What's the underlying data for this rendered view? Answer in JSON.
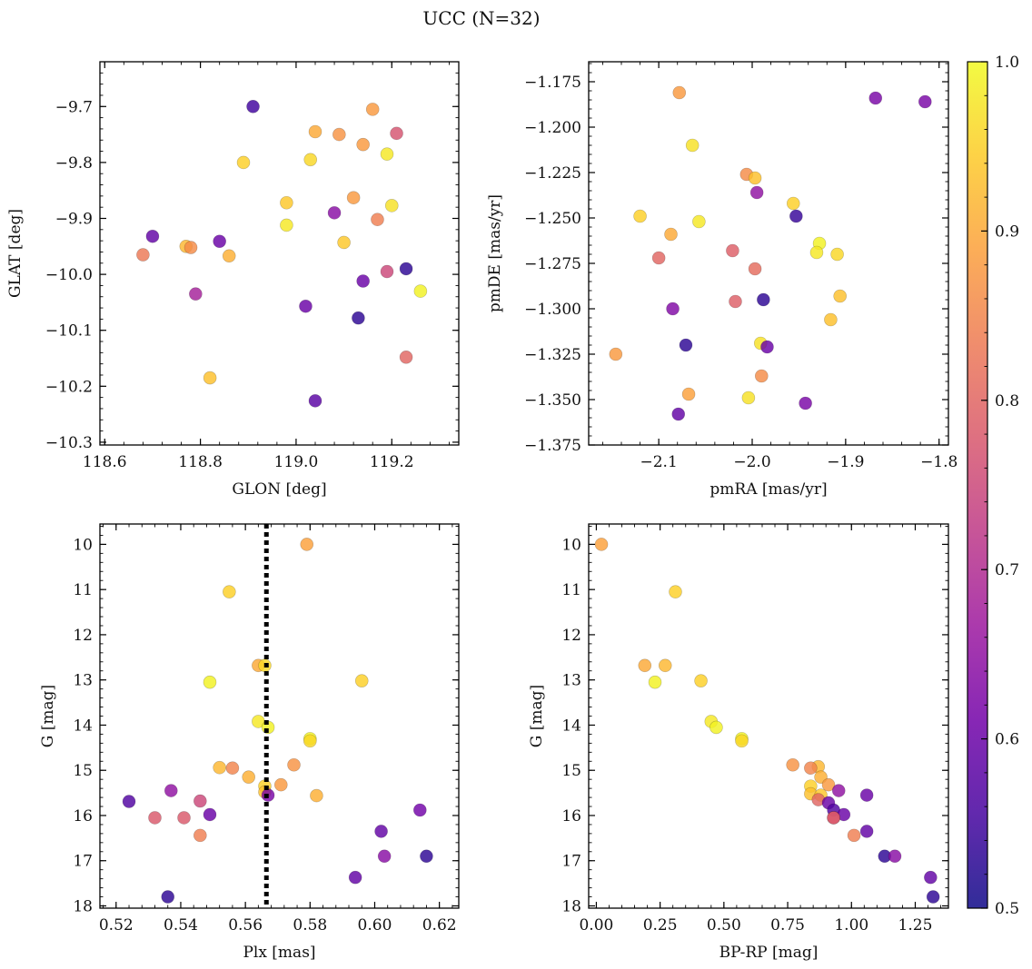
{
  "figure": {
    "title": "UCC (N=32)"
  },
  "colormap": {
    "name": "plasma",
    "range": [
      0.5,
      1.0
    ],
    "stops": [
      "#0d0887",
      "#46039f",
      "#7201a8",
      "#9c179e",
      "#bd3786",
      "#d8576b",
      "#ed7953",
      "#fb9f3a",
      "#fdca26",
      "#f0f921"
    ],
    "ticks": [
      0.5,
      0.6,
      0.7,
      0.8,
      0.9,
      1.0
    ],
    "tick_labels": [
      "0.5",
      "0.6",
      "0.7",
      "0.8",
      "0.9",
      "1.0"
    ]
  },
  "chart_data": [
    {
      "type": "scatter",
      "id": "radec",
      "xlabel": "GLON [deg]",
      "ylabel": "GLAT [deg]",
      "xlim": [
        118.59,
        119.34
      ],
      "ylim": [
        -10.305,
        -9.62
      ],
      "xticks": [
        118.6,
        118.8,
        119.0,
        119.2
      ],
      "xtick_labels": [
        "118.6",
        "118.8",
        "119.0",
        "119.2"
      ],
      "yticks": [
        -10.3,
        -10.2,
        -10.1,
        -10.0,
        -9.9,
        -9.8,
        -9.7
      ],
      "ytick_labels": [
        "−10.3",
        "−10.2",
        "−10.1",
        "−10.0",
        "−9.9",
        "−9.8",
        "−9.7"
      ],
      "points": [
        [
          118.91,
          -9.7,
          0.55
        ],
        [
          119.16,
          -9.705,
          0.88
        ],
        [
          119.04,
          -9.745,
          0.9
        ],
        [
          119.09,
          -9.75,
          0.87
        ],
        [
          119.21,
          -9.748,
          0.77
        ],
        [
          119.14,
          -9.768,
          0.88
        ],
        [
          119.19,
          -9.785,
          0.98
        ],
        [
          118.89,
          -9.8,
          0.95
        ],
        [
          119.03,
          -9.795,
          0.96
        ],
        [
          119.12,
          -9.863,
          0.88
        ],
        [
          118.98,
          -9.872,
          0.94
        ],
        [
          119.2,
          -9.877,
          0.97
        ],
        [
          119.08,
          -9.89,
          0.64
        ],
        [
          119.17,
          -9.902,
          0.84
        ],
        [
          118.98,
          -9.912,
          0.98
        ],
        [
          118.7,
          -9.932,
          0.59
        ],
        [
          118.84,
          -9.941,
          0.6
        ],
        [
          119.1,
          -9.943,
          0.94
        ],
        [
          118.77,
          -9.95,
          0.92
        ],
        [
          118.78,
          -9.952,
          0.86
        ],
        [
          118.68,
          -9.965,
          0.83
        ],
        [
          118.86,
          -9.967,
          0.91
        ],
        [
          119.23,
          -9.99,
          0.53
        ],
        [
          119.19,
          -9.995,
          0.75
        ],
        [
          119.14,
          -10.012,
          0.6
        ],
        [
          119.26,
          -10.03,
          0.99
        ],
        [
          118.79,
          -10.035,
          0.68
        ],
        [
          119.02,
          -10.057,
          0.6
        ],
        [
          119.13,
          -10.078,
          0.53
        ],
        [
          119.23,
          -10.148,
          0.8
        ],
        [
          118.82,
          -10.185,
          0.93
        ],
        [
          119.04,
          -10.226,
          0.58
        ]
      ]
    },
    {
      "type": "scatter",
      "id": "pm",
      "xlabel": "pmRA [mas/yr]",
      "ylabel": "pmDE [mas/yr]",
      "xlim": [
        -2.175,
        -1.79
      ],
      "ylim": [
        -1.375,
        -1.164
      ],
      "xticks": [
        -2.1,
        -2.0,
        -1.9,
        -1.8
      ],
      "xtick_labels": [
        "−2.1",
        "−2.0",
        "−1.9",
        "−1.8"
      ],
      "yticks": [
        -1.375,
        -1.35,
        -1.325,
        -1.3,
        -1.275,
        -1.25,
        -1.225,
        -1.2,
        -1.175
      ],
      "ytick_labels": [
        "−1.375",
        "−1.350",
        "−1.325",
        "−1.300",
        "−1.275",
        "−1.250",
        "−1.225",
        "−1.200",
        "−1.175"
      ],
      "points": [
        [
          -2.078,
          -1.181,
          0.88
        ],
        [
          -1.868,
          -1.184,
          0.62
        ],
        [
          -1.815,
          -1.186,
          0.62
        ],
        [
          -2.064,
          -1.21,
          0.97
        ],
        [
          -2.006,
          -1.226,
          0.86
        ],
        [
          -1.997,
          -1.228,
          0.93
        ],
        [
          -1.995,
          -1.236,
          0.65
        ],
        [
          -1.956,
          -1.242,
          0.95
        ],
        [
          -2.12,
          -1.249,
          0.95
        ],
        [
          -1.953,
          -1.249,
          0.54
        ],
        [
          -2.057,
          -1.252,
          0.98
        ],
        [
          -2.087,
          -1.259,
          0.9
        ],
        [
          -2.021,
          -1.268,
          0.79
        ],
        [
          -1.928,
          -1.264,
          0.99
        ],
        [
          -1.931,
          -1.269,
          0.98
        ],
        [
          -1.909,
          -1.27,
          0.96
        ],
        [
          -2.1,
          -1.272,
          0.8
        ],
        [
          -1.997,
          -1.278,
          0.81
        ],
        [
          -1.906,
          -1.293,
          0.93
        ],
        [
          -2.018,
          -1.296,
          0.79
        ],
        [
          -1.988,
          -1.295,
          0.53
        ],
        [
          -2.085,
          -1.3,
          0.63
        ],
        [
          -1.916,
          -1.306,
          0.93
        ],
        [
          -1.991,
          -1.319,
          0.97
        ],
        [
          -1.984,
          -1.321,
          0.6
        ],
        [
          -2.071,
          -1.32,
          0.53
        ],
        [
          -2.146,
          -1.325,
          0.88
        ],
        [
          -1.99,
          -1.337,
          0.86
        ],
        [
          -2.068,
          -1.347,
          0.89
        ],
        [
          -2.004,
          -1.349,
          0.97
        ],
        [
          -1.943,
          -1.352,
          0.62
        ],
        [
          -2.079,
          -1.358,
          0.59
        ]
      ]
    },
    {
      "type": "scatter",
      "id": "plx",
      "xlabel": "Plx [mas]",
      "ylabel": "G [mag]",
      "xlim": [
        0.515,
        0.626
      ],
      "ylim": [
        18.05,
        9.55
      ],
      "y_inverted": true,
      "xticks": [
        0.52,
        0.54,
        0.56,
        0.58,
        0.6,
        0.62
      ],
      "xtick_labels": [
        "0.52",
        "0.54",
        "0.56",
        "0.58",
        "0.60",
        "0.62"
      ],
      "yticks": [
        10,
        11,
        12,
        13,
        14,
        15,
        16,
        17,
        18
      ],
      "ytick_labels": [
        "10",
        "11",
        "12",
        "13",
        "14",
        "15",
        "16",
        "17",
        "18"
      ],
      "vline": 0.5665,
      "points": [
        [
          0.579,
          10.0,
          0.89
        ],
        [
          0.555,
          11.05,
          0.95
        ],
        [
          0.564,
          12.68,
          0.9
        ],
        [
          0.566,
          12.68,
          0.96
        ],
        [
          0.549,
          13.05,
          0.99
        ],
        [
          0.596,
          13.02,
          0.95
        ],
        [
          0.564,
          13.92,
          0.98
        ],
        [
          0.567,
          14.05,
          0.99
        ],
        [
          0.58,
          14.3,
          0.99
        ],
        [
          0.58,
          14.35,
          0.96
        ],
        [
          0.575,
          14.88,
          0.87
        ],
        [
          0.552,
          14.94,
          0.92
        ],
        [
          0.556,
          14.95,
          0.85
        ],
        [
          0.561,
          15.15,
          0.91
        ],
        [
          0.571,
          15.32,
          0.88
        ],
        [
          0.566,
          15.35,
          0.95
        ],
        [
          0.566,
          15.48,
          0.93
        ],
        [
          0.567,
          15.55,
          0.62
        ],
        [
          0.582,
          15.56,
          0.91
        ],
        [
          0.524,
          15.69,
          0.57
        ],
        [
          0.537,
          15.45,
          0.65
        ],
        [
          0.546,
          15.68,
          0.75
        ],
        [
          0.614,
          15.88,
          0.61
        ],
        [
          0.549,
          15.98,
          0.6
        ],
        [
          0.532,
          16.05,
          0.78
        ],
        [
          0.541,
          16.05,
          0.78
        ],
        [
          0.546,
          16.44,
          0.84
        ],
        [
          0.602,
          16.35,
          0.59
        ],
        [
          0.603,
          16.9,
          0.64
        ],
        [
          0.616,
          16.9,
          0.53
        ],
        [
          0.594,
          17.37,
          0.59
        ],
        [
          0.536,
          17.8,
          0.53
        ]
      ]
    },
    {
      "type": "scatter",
      "id": "cmd",
      "xlabel": "BP-RP [mag]",
      "ylabel": "G [mag]",
      "xlim": [
        -0.03,
        1.38
      ],
      "ylim": [
        18.05,
        9.55
      ],
      "y_inverted": true,
      "xticks": [
        0.0,
        0.25,
        0.5,
        0.75,
        1.0,
        1.25
      ],
      "xtick_labels": [
        "0.00",
        "0.25",
        "0.50",
        "0.75",
        "1.00",
        "1.25"
      ],
      "yticks": [
        10,
        11,
        12,
        13,
        14,
        15,
        16,
        17,
        18
      ],
      "ytick_labels": [
        "10",
        "11",
        "12",
        "13",
        "14",
        "15",
        "16",
        "17",
        "18"
      ],
      "points": [
        [
          0.02,
          10.0,
          0.89
        ],
        [
          0.31,
          11.05,
          0.95
        ],
        [
          0.19,
          12.68,
          0.9
        ],
        [
          0.27,
          12.68,
          0.92
        ],
        [
          0.23,
          13.05,
          0.99
        ],
        [
          0.41,
          13.02,
          0.95
        ],
        [
          0.45,
          13.92,
          0.98
        ],
        [
          0.47,
          14.05,
          0.99
        ],
        [
          0.57,
          14.3,
          0.99
        ],
        [
          0.57,
          14.35,
          0.96
        ],
        [
          0.77,
          14.88,
          0.87
        ],
        [
          0.87,
          14.92,
          0.92
        ],
        [
          0.84,
          14.95,
          0.85
        ],
        [
          0.88,
          15.15,
          0.91
        ],
        [
          0.91,
          15.32,
          0.88
        ],
        [
          0.84,
          15.35,
          0.95
        ],
        [
          0.84,
          15.52,
          0.93
        ],
        [
          0.88,
          15.55,
          0.94
        ],
        [
          0.95,
          15.45,
          0.65
        ],
        [
          1.06,
          15.55,
          0.6
        ],
        [
          0.87,
          15.65,
          0.8
        ],
        [
          0.91,
          15.72,
          0.6
        ],
        [
          0.93,
          15.88,
          0.57
        ],
        [
          0.97,
          15.98,
          0.6
        ],
        [
          0.93,
          16.05,
          0.78
        ],
        [
          0.93,
          16.05,
          0.78
        ],
        [
          1.01,
          16.44,
          0.84
        ],
        [
          1.06,
          16.35,
          0.59
        ],
        [
          1.13,
          16.9,
          0.53
        ],
        [
          1.17,
          16.9,
          0.64
        ],
        [
          1.31,
          17.37,
          0.59
        ],
        [
          1.32,
          17.8,
          0.53
        ]
      ]
    }
  ]
}
